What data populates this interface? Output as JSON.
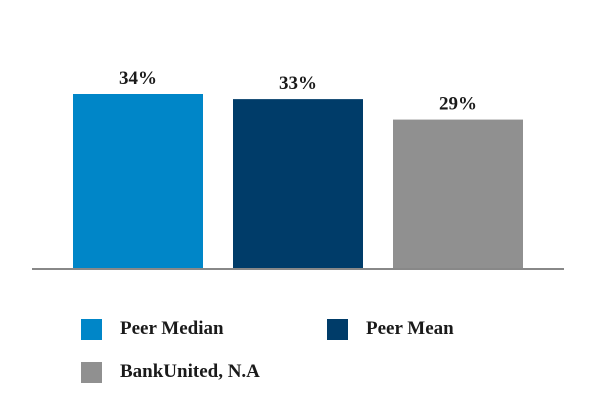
{
  "chart_data": {
    "type": "bar",
    "categories": [
      "Peer Median",
      "Peer Mean",
      "BankUnited, N.A"
    ],
    "values": [
      34,
      33,
      29
    ],
    "data_labels": [
      "34%",
      "33%",
      "29%"
    ],
    "colors": [
      "#0086c8",
      "#003c69",
      "#909090"
    ],
    "title": "",
    "xlabel": "",
    "ylabel": "",
    "ylim": [
      0,
      34
    ],
    "grid": false,
    "legend_placement": "bottom"
  },
  "legend": {
    "items": [
      {
        "label": "Peer Median",
        "color": "#0086c8"
      },
      {
        "label": "Peer Mean",
        "color": "#003c69"
      },
      {
        "label": "BankUnited, N.A",
        "color": "#909090"
      }
    ]
  },
  "colors": {
    "axis": "#888888"
  }
}
